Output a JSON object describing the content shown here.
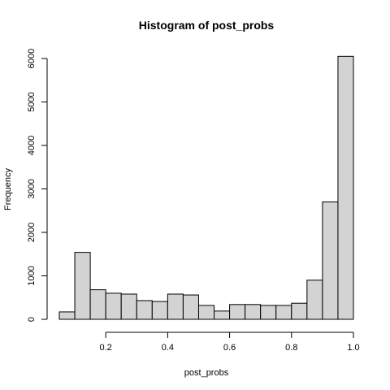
{
  "chart_data": {
    "type": "bar",
    "title": "Histogram of post_probs",
    "xlabel": "post_probs",
    "ylabel": "Frequency",
    "bin_edges": [
      0.05,
      0.1,
      0.15,
      0.2,
      0.25,
      0.3,
      0.35,
      0.4,
      0.45,
      0.5,
      0.55,
      0.6,
      0.65,
      0.7,
      0.75,
      0.8,
      0.85,
      0.9,
      0.95,
      1.0
    ],
    "values": [
      170,
      1540,
      680,
      600,
      580,
      430,
      410,
      580,
      560,
      320,
      190,
      340,
      340,
      320,
      320,
      370,
      900,
      2700,
      6050
    ],
    "x_ticks": [
      0.2,
      0.4,
      0.6,
      0.8,
      1.0
    ],
    "x_tick_labels": [
      "0.2",
      "0.4",
      "0.6",
      "0.8",
      "1.0"
    ],
    "y_ticks": [
      0,
      1000,
      2000,
      3000,
      4000,
      5000,
      6000
    ],
    "y_tick_labels": [
      "0",
      "1000",
      "2000",
      "3000",
      "4000",
      "5000",
      "6000"
    ],
    "xlim": [
      0.05,
      1.0
    ],
    "ylim": [
      0,
      6000
    ],
    "grid": false
  }
}
